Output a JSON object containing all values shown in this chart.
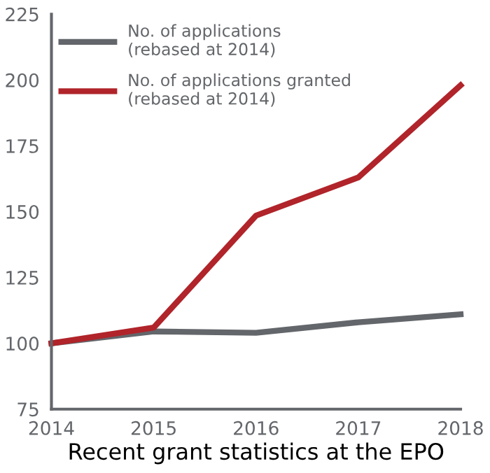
{
  "chart_data": {
    "type": "line",
    "xlabel": "Recent grant statistics at the EPO",
    "x": [
      2014,
      2015,
      2016,
      2017,
      2018
    ],
    "series": [
      {
        "name": "No. of applications\n(rebased at 2014)",
        "color": "#63666a",
        "values": [
          100,
          104.5,
          104,
          108,
          111
        ]
      },
      {
        "name": "No. of applications granted\n(rebased at 2014)",
        "color": "#b0242a",
        "values": [
          100,
          106,
          148.5,
          163,
          198
        ]
      }
    ],
    "xlim": [
      2014,
      2018
    ],
    "xticks": [
      2014,
      2015,
      2016,
      2017,
      2018
    ],
    "ylim": [
      75,
      225
    ],
    "yticks": [
      75,
      100,
      125,
      150,
      175,
      200,
      225
    ],
    "grid": false,
    "legend": "top left",
    "marker": "none",
    "line_style": "solid"
  }
}
